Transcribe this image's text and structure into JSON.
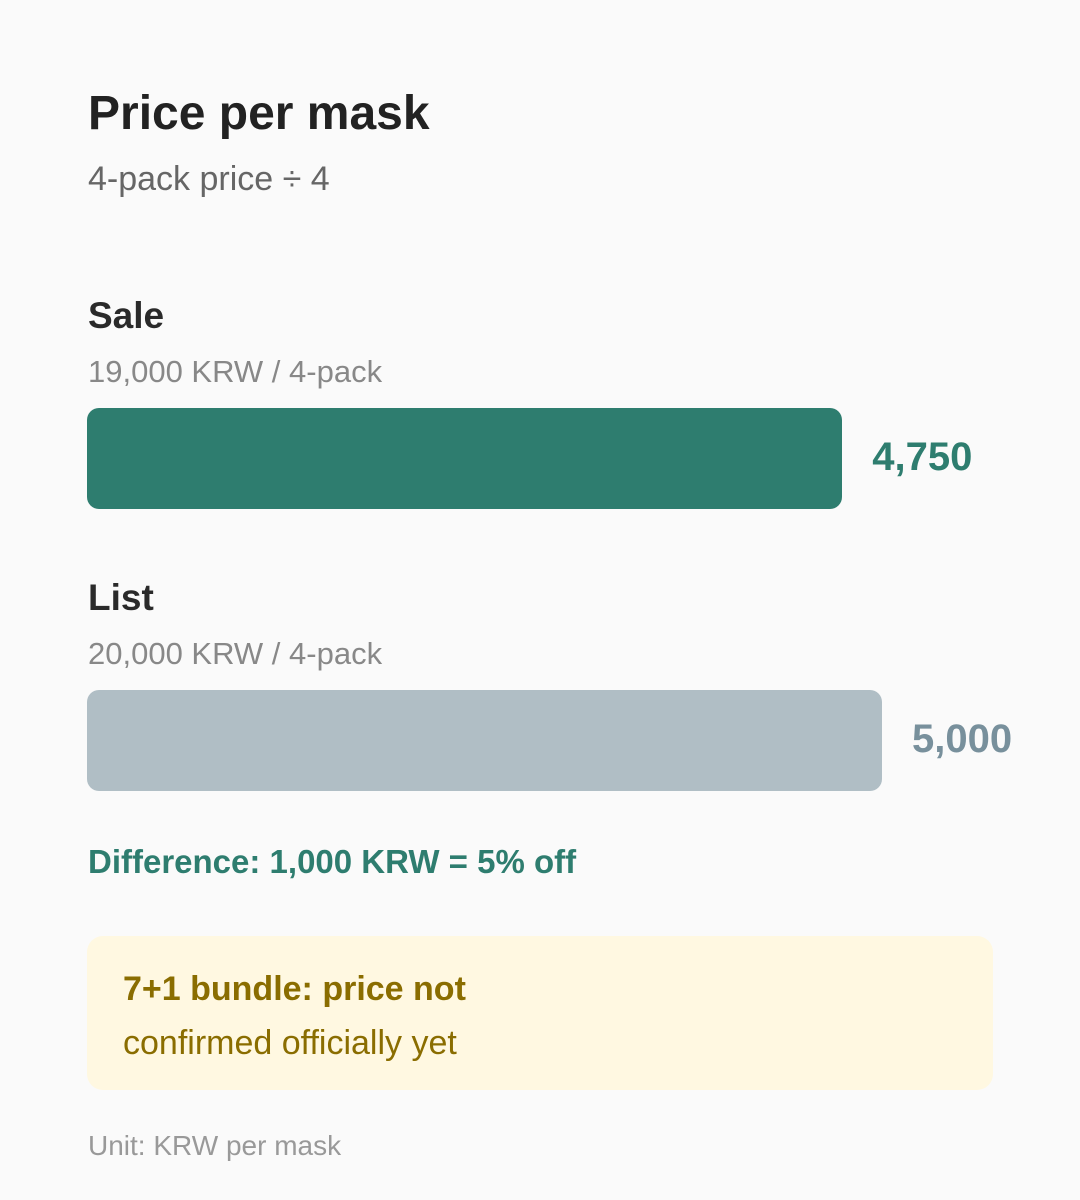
{
  "chart_data": {
    "type": "bar",
    "orientation": "horizontal",
    "title": "Price per mask",
    "subtitle": "4-pack price ÷ 4",
    "categories": [
      "Sale",
      "List"
    ],
    "category_notes": [
      "19,000 KRW / 4-pack",
      "20,000 KRW / 4-pack"
    ],
    "values": [
      4750,
      5000
    ],
    "value_labels": [
      "4,750",
      "5,000"
    ],
    "colors": [
      "#2e7d6f",
      "#b0bec5"
    ],
    "label_colors": [
      "#2e7d6f",
      "#78909c"
    ],
    "annotation": "Difference: 1,000 KRW = 5% off",
    "note_title": "7+1 bundle: price not",
    "note_text": "confirmed officially yet",
    "unit_label": "Unit: KRW per mask"
  }
}
